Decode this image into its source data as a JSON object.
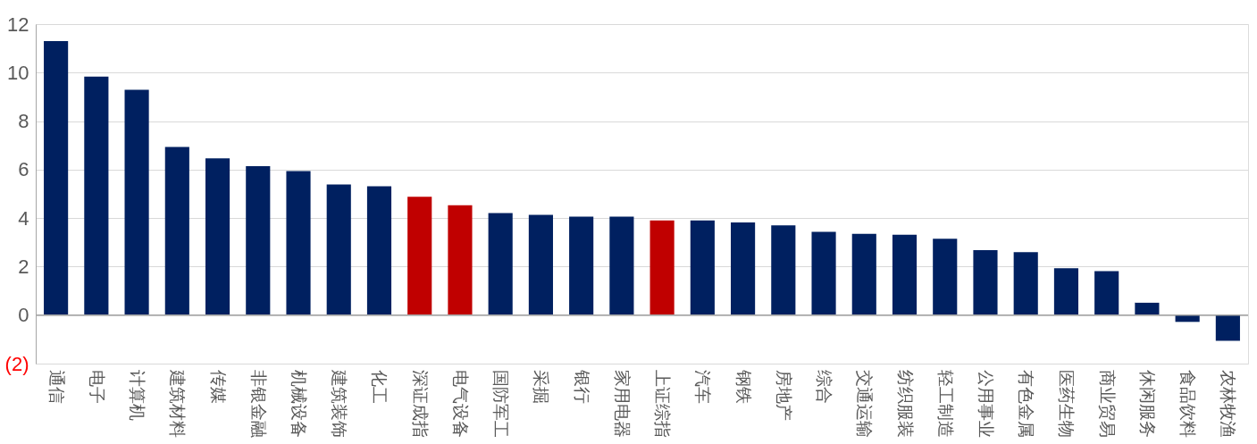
{
  "chart_data": {
    "type": "bar",
    "categories": [
      "通信",
      "电子",
      "计算机",
      "建筑材料",
      "传媒",
      "非银金融",
      "机械设备",
      "建筑装饰",
      "化工",
      "深证成指",
      "电气设备",
      "国防军工",
      "采掘",
      "银行",
      "家用电器",
      "上证综指",
      "汽车",
      "钢铁",
      "房地产",
      "综合",
      "交通运输",
      "纺织服装",
      "轻工制造",
      "公用事业",
      "有色金属",
      "医药生物",
      "商业贸易",
      "休闲服务",
      "食品饮料",
      "农林牧渔"
    ],
    "values": [
      11.3,
      9.84,
      9.29,
      6.93,
      6.46,
      6.14,
      5.94,
      5.39,
      5.31,
      4.88,
      4.53,
      4.21,
      4.13,
      4.06,
      4.06,
      3.9,
      3.9,
      3.82,
      3.7,
      3.43,
      3.35,
      3.31,
      3.15,
      2.68,
      2.6,
      1.93,
      1.81,
      0.51,
      -0.28,
      -1.06
    ],
    "colors": [
      "#002060",
      "#002060",
      "#002060",
      "#002060",
      "#002060",
      "#002060",
      "#002060",
      "#002060",
      "#002060",
      "#c00000",
      "#c00000",
      "#002060",
      "#002060",
      "#002060",
      "#002060",
      "#c00000",
      "#002060",
      "#002060",
      "#002060",
      "#002060",
      "#002060",
      "#002060",
      "#002060",
      "#002060",
      "#002060",
      "#002060",
      "#002060",
      "#002060",
      "#002060",
      "#002060"
    ],
    "ylim": [
      -2,
      12
    ],
    "yticks": [
      {
        "value": -2,
        "label": "(2)"
      },
      0,
      2,
      4,
      6,
      8,
      10,
      12
    ],
    "grid": "y"
  }
}
